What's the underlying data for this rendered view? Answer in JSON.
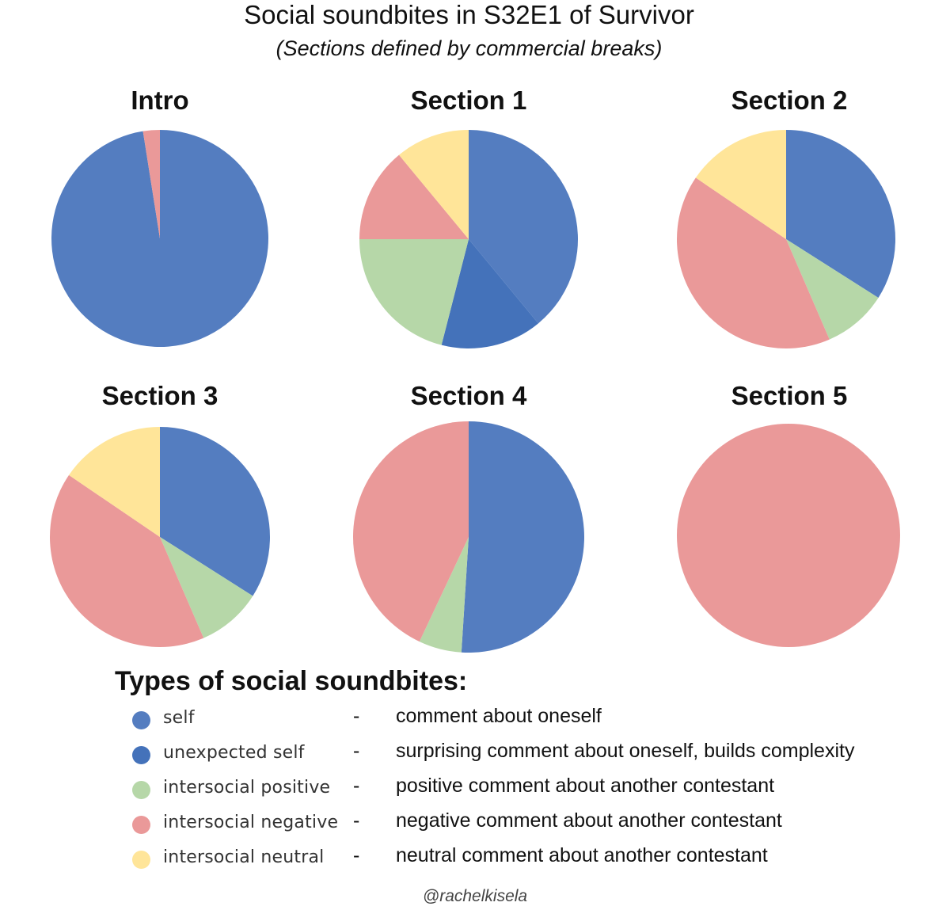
{
  "title": "Social soundbites in S32E1 of Survivor",
  "subtitle": "(Sections defined by commercial breaks)",
  "colors": {
    "self": "#547DC0",
    "unexpected_self": "#4472BA",
    "intersocial_positive": "#B6D7A8",
    "intersocial_negative": "#EA9999",
    "intersocial_neutral": "#FFE599"
  },
  "legend": {
    "heading": "Types of social soundbites:",
    "items": [
      {
        "key": "self",
        "label": "self",
        "dash": "-",
        "description": "comment about oneself",
        "color": "#547DC0"
      },
      {
        "key": "unexpected_self",
        "label": "unexpected self",
        "dash": "-",
        "description": "surprising comment about oneself, builds complexity",
        "color": "#4472BA"
      },
      {
        "key": "intersocial_positive",
        "label": "intersocial positive",
        "dash": "-",
        "description": "positive comment about another contestant",
        "color": "#B6D7A8"
      },
      {
        "key": "intersocial_negative",
        "label": "intersocial negative",
        "dash": "-",
        "description": "negative comment about another contestant",
        "color": "#EA9999"
      },
      {
        "key": "intersocial_neutral",
        "label": "intersocial neutral",
        "dash": "-",
        "description": "neutral comment about another contestant",
        "color": "#FFE599"
      }
    ]
  },
  "credit": "@rachelkisela",
  "chart_data": [
    {
      "type": "pie",
      "title": "Intro",
      "slices": [
        {
          "category": "self",
          "value": 97.5
        },
        {
          "category": "intersocial_negative",
          "value": 2.5
        }
      ]
    },
    {
      "type": "pie",
      "title": "Section 1",
      "slices": [
        {
          "category": "self",
          "value": 39
        },
        {
          "category": "unexpected_self",
          "value": 15
        },
        {
          "category": "intersocial_positive",
          "value": 21
        },
        {
          "category": "intersocial_negative",
          "value": 14
        },
        {
          "category": "intersocial_neutral",
          "value": 11
        }
      ]
    },
    {
      "type": "pie",
      "title": "Section 2",
      "slices": [
        {
          "category": "self",
          "value": 34
        },
        {
          "category": "intersocial_positive",
          "value": 9.5
        },
        {
          "category": "intersocial_negative",
          "value": 41
        },
        {
          "category": "intersocial_neutral",
          "value": 15.5
        }
      ]
    },
    {
      "type": "pie",
      "title": "Section 3",
      "slices": [
        {
          "category": "self",
          "value": 34
        },
        {
          "category": "intersocial_positive",
          "value": 9.5
        },
        {
          "category": "intersocial_negative",
          "value": 41
        },
        {
          "category": "intersocial_neutral",
          "value": 15.5
        }
      ]
    },
    {
      "type": "pie",
      "title": "Section 4",
      "slices": [
        {
          "category": "self",
          "value": 51
        },
        {
          "category": "intersocial_positive",
          "value": 6
        },
        {
          "category": "intersocial_negative",
          "value": 43
        }
      ]
    },
    {
      "type": "pie",
      "title": "Section 5",
      "slices": [
        {
          "category": "intersocial_negative",
          "value": 100
        }
      ]
    }
  ]
}
